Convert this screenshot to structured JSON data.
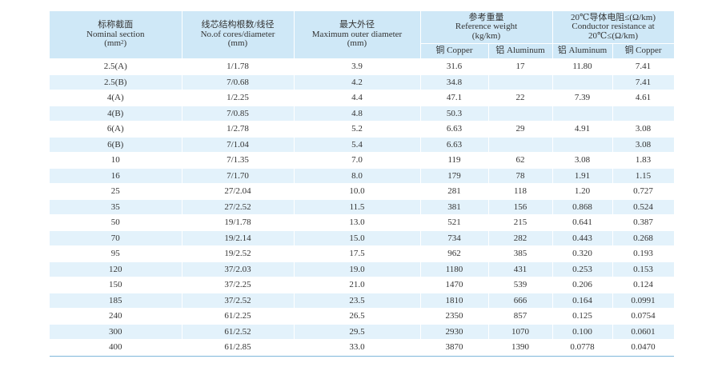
{
  "headers": {
    "section_cn": "标称截面",
    "section_en": "Nominal section",
    "section_unit_pre": "(mm",
    "section_unit_sup": "2",
    "section_unit_post": ")",
    "cores_cn": "线芯结构根数/线径",
    "cores_en": "No.of cores/diameter",
    "cores_unit": "(mm)",
    "outer_cn": "最大外径",
    "outer_en": "Maximum outer diameter",
    "outer_unit": "(mm)",
    "weight_cn": "参考重量",
    "weight_en": "Reference weight",
    "weight_unit": "(kg/km)",
    "resist_cn": "20℃导体电阻≤(Ω/km)",
    "resist_en": "Conductor resistance at",
    "resist_unit": "20℃≤(Ω/km)",
    "copper": "铜 Copper",
    "aluminum": "铝 Aluminum",
    "aluminum2": "铝 Aluminum",
    "copper2": "铜 Copper"
  },
  "rows": [
    [
      "2.5(A)",
      "1/1.78",
      "3.9",
      "31.6",
      "17",
      "11.80",
      "7.41"
    ],
    [
      "2.5(B)",
      "7/0.68",
      "4.2",
      "34.8",
      "",
      "",
      "7.41"
    ],
    [
      "4(A)",
      "1/2.25",
      "4.4",
      "47.1",
      "22",
      "7.39",
      "4.61"
    ],
    [
      "4(B)",
      "7/0.85",
      "4.8",
      "50.3",
      "",
      "",
      ""
    ],
    [
      "6(A)",
      "1/2.78",
      "5.2",
      "6.63",
      "29",
      "4.91",
      "3.08"
    ],
    [
      "6(B)",
      "7/1.04",
      "5.4",
      "6.63",
      "",
      "",
      "3.08"
    ],
    [
      "10",
      "7/1.35",
      "7.0",
      "119",
      "62",
      "3.08",
      "1.83"
    ],
    [
      "16",
      "7/1.70",
      "8.0",
      "179",
      "78",
      "1.91",
      "1.15"
    ],
    [
      "25",
      "27/2.04",
      "10.0",
      "281",
      "118",
      "1.20",
      "0.727"
    ],
    [
      "35",
      "27/2.52",
      "11.5",
      "381",
      "156",
      "0.868",
      "0.524"
    ],
    [
      "50",
      "19/1.78",
      "13.0",
      "521",
      "215",
      "0.641",
      "0.387"
    ],
    [
      "70",
      "19/2.14",
      "15.0",
      "734",
      "282",
      "0.443",
      "0.268"
    ],
    [
      "95",
      "19/2.52",
      "17.5",
      "962",
      "385",
      "0.320",
      "0.193"
    ],
    [
      "120",
      "37/2.03",
      "19.0",
      "1180",
      "431",
      "0.253",
      "0.153"
    ],
    [
      "150",
      "37/2.25",
      "21.0",
      "1470",
      "539",
      "0.206",
      "0.124"
    ],
    [
      "185",
      "37/2.52",
      "23.5",
      "1810",
      "666",
      "0.164",
      "0.0991"
    ],
    [
      "240",
      "61/2.25",
      "26.5",
      "2350",
      "857",
      "0.125",
      "0.0754"
    ],
    [
      "300",
      "61/2.52",
      "29.5",
      "2930",
      "1070",
      "0.100",
      "0.0601"
    ],
    [
      "400",
      "61/2.85",
      "33.0",
      "3870",
      "1390",
      "0.0778",
      "0.0470"
    ]
  ]
}
